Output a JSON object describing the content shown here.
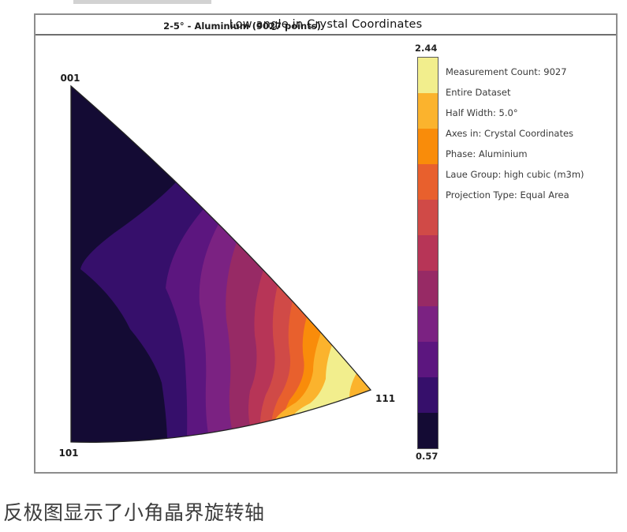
{
  "page": {
    "caption": "反极图显示了小角晶界旋转轴"
  },
  "figure": {
    "title": "Low angle in Crystal Coordinates",
    "subtitle": "2-5° - Aluminium (9027 points)",
    "corner_labels": {
      "top_left": "001",
      "bottom_left": "101",
      "bottom_right": "111"
    },
    "colorbar": {
      "max": "2.44",
      "min": "0.57",
      "colors": [
        "#f2ee8d",
        "#fbb32d",
        "#f98c0a",
        "#e8602d",
        "#d04a47",
        "#b73557",
        "#972a65",
        "#7b2282",
        "#5c167f",
        "#360f6b",
        "#140b34"
      ]
    },
    "legend": {
      "lines": [
        "Measurement Count: 9027",
        "Entire Dataset",
        "Half Width: 5.0°",
        "Axes in: Crystal Coordinates",
        "Phase: Aluminium",
        "Laue Group: high cubic (m3m)",
        "Projection Type: Equal Area"
      ]
    }
  },
  "chart_data": {
    "type": "contour",
    "plot_kind": "inverse-pole-figure",
    "title": "Low angle in Crystal Coordinates",
    "subtitle": "2-5° - Aluminium (9027 points)",
    "triangle_corners": [
      "001",
      "101",
      "111"
    ],
    "projection": "Equal Area",
    "measurement_count": 9027,
    "misorientation_range_deg": "2-5",
    "half_width_deg": 5.0,
    "phase": "Aluminium",
    "laue_group": "high cubic (m3m)",
    "axes_in": "Crystal Coordinates",
    "value_min": 0.57,
    "value_max": 2.44,
    "levels": 11,
    "colormap": "inferno-discrete-11",
    "band_colors_high_to_low": [
      "#f2ee8d",
      "#fbb32d",
      "#f98c0a",
      "#e8602d",
      "#d04a47",
      "#b73557",
      "#972a65",
      "#7b2282",
      "#5c167f",
      "#360f6b",
      "#140b34"
    ],
    "distribution": "Density is minimal (~0.57) near the 001 and 101 corners and along the 001-101 edge, rises through nested wavy bands toward the 111 corner, peaking at ~2.44 adjacent to 111 with a slight dip (amber band) at the exact 111 corner; an intermediate dark-violet lobe extends from the 001-111 edge toward the 001-101 edge at mid-height."
  }
}
